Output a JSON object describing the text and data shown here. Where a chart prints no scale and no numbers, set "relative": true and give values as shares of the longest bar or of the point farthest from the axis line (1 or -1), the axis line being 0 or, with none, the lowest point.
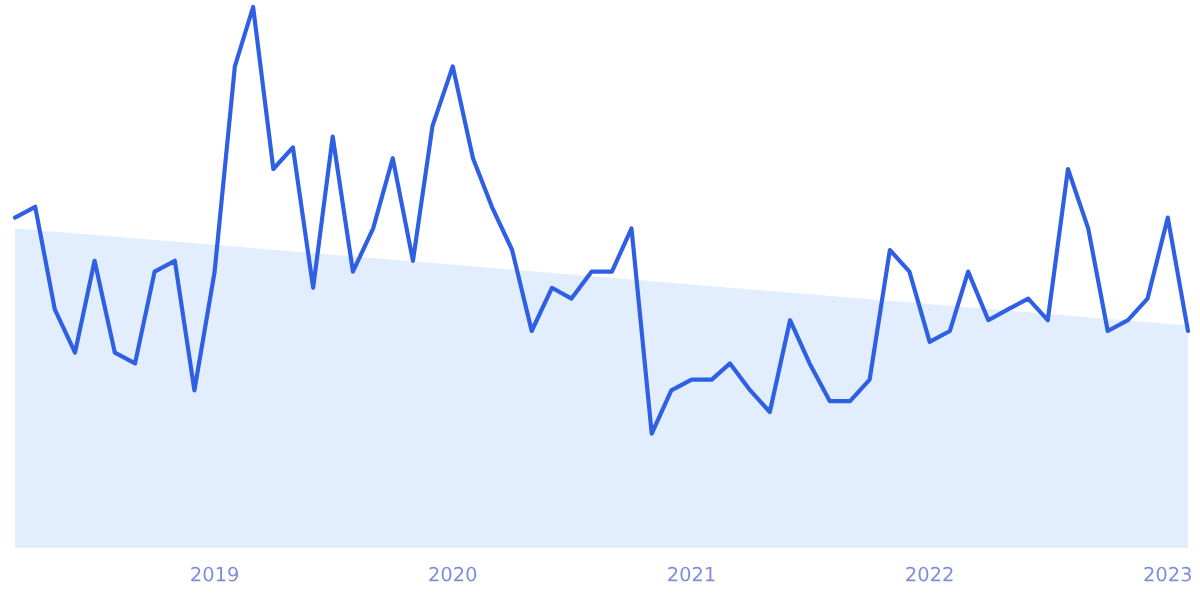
{
  "chart_data": {
    "type": "line",
    "relative": true,
    "xlim": [
      "2018-03",
      "2023-02"
    ],
    "xticks": [
      "2019",
      "2020",
      "2021",
      "2022",
      "2023"
    ],
    "series": [
      {
        "type": "area",
        "color": "#dbeafe",
        "x": [
          "2018-03",
          "2023-02"
        ],
        "values": [
          0.59,
          0.41
        ]
      },
      {
        "color": "#2f5fe3",
        "x": [
          "2018-03",
          "2018-04",
          "2018-05",
          "2018-06",
          "2018-07",
          "2018-08",
          "2018-09",
          "2018-10",
          "2018-11",
          "2018-12",
          "2019-01",
          "2019-02",
          "2019-03",
          "2019-04",
          "2019-05",
          "2019-06",
          "2019-07",
          "2019-08",
          "2019-09",
          "2019-10",
          "2019-11",
          "2019-12",
          "2020-01",
          "2020-02",
          "2020-03",
          "2020-04",
          "2020-05",
          "2020-06",
          "2020-07",
          "2020-08",
          "2020-09",
          "2020-10",
          "2020-11",
          "2020-12",
          "2021-01",
          "2021-02",
          "2021-03",
          "2021-04",
          "2021-05",
          "2021-06",
          "2021-07",
          "2021-08",
          "2021-09",
          "2021-10",
          "2021-11",
          "2021-12",
          "2022-01",
          "2022-02",
          "2022-03",
          "2022-04",
          "2022-05",
          "2022-06",
          "2022-07",
          "2022-08",
          "2022-09",
          "2022-10",
          "2022-11",
          "2022-12",
          "2023-01",
          "2023-02"
        ],
        "values": [
          0.61,
          0.63,
          0.44,
          0.36,
          0.53,
          0.36,
          0.34,
          0.51,
          0.53,
          0.29,
          0.51,
          0.89,
          1,
          0.7,
          0.74,
          0.48,
          0.76,
          0.51,
          0.59,
          0.72,
          0.53,
          0.78,
          0.89,
          0.72,
          0.63,
          0.55,
          0.4,
          0.48,
          0.46,
          0.51,
          0.51,
          0.59,
          0.21,
          0.29,
          0.31,
          0.31,
          0.34,
          0.29,
          0.25,
          0.42,
          0.34,
          0.27,
          0.27,
          0.31,
          0.55,
          0.51,
          0.38,
          0.4,
          0.51,
          0.42,
          0.44,
          0.46,
          0.42,
          0.7,
          0.59,
          0.4,
          0.42,
          0.46,
          0.61,
          0.4
        ]
      }
    ]
  }
}
